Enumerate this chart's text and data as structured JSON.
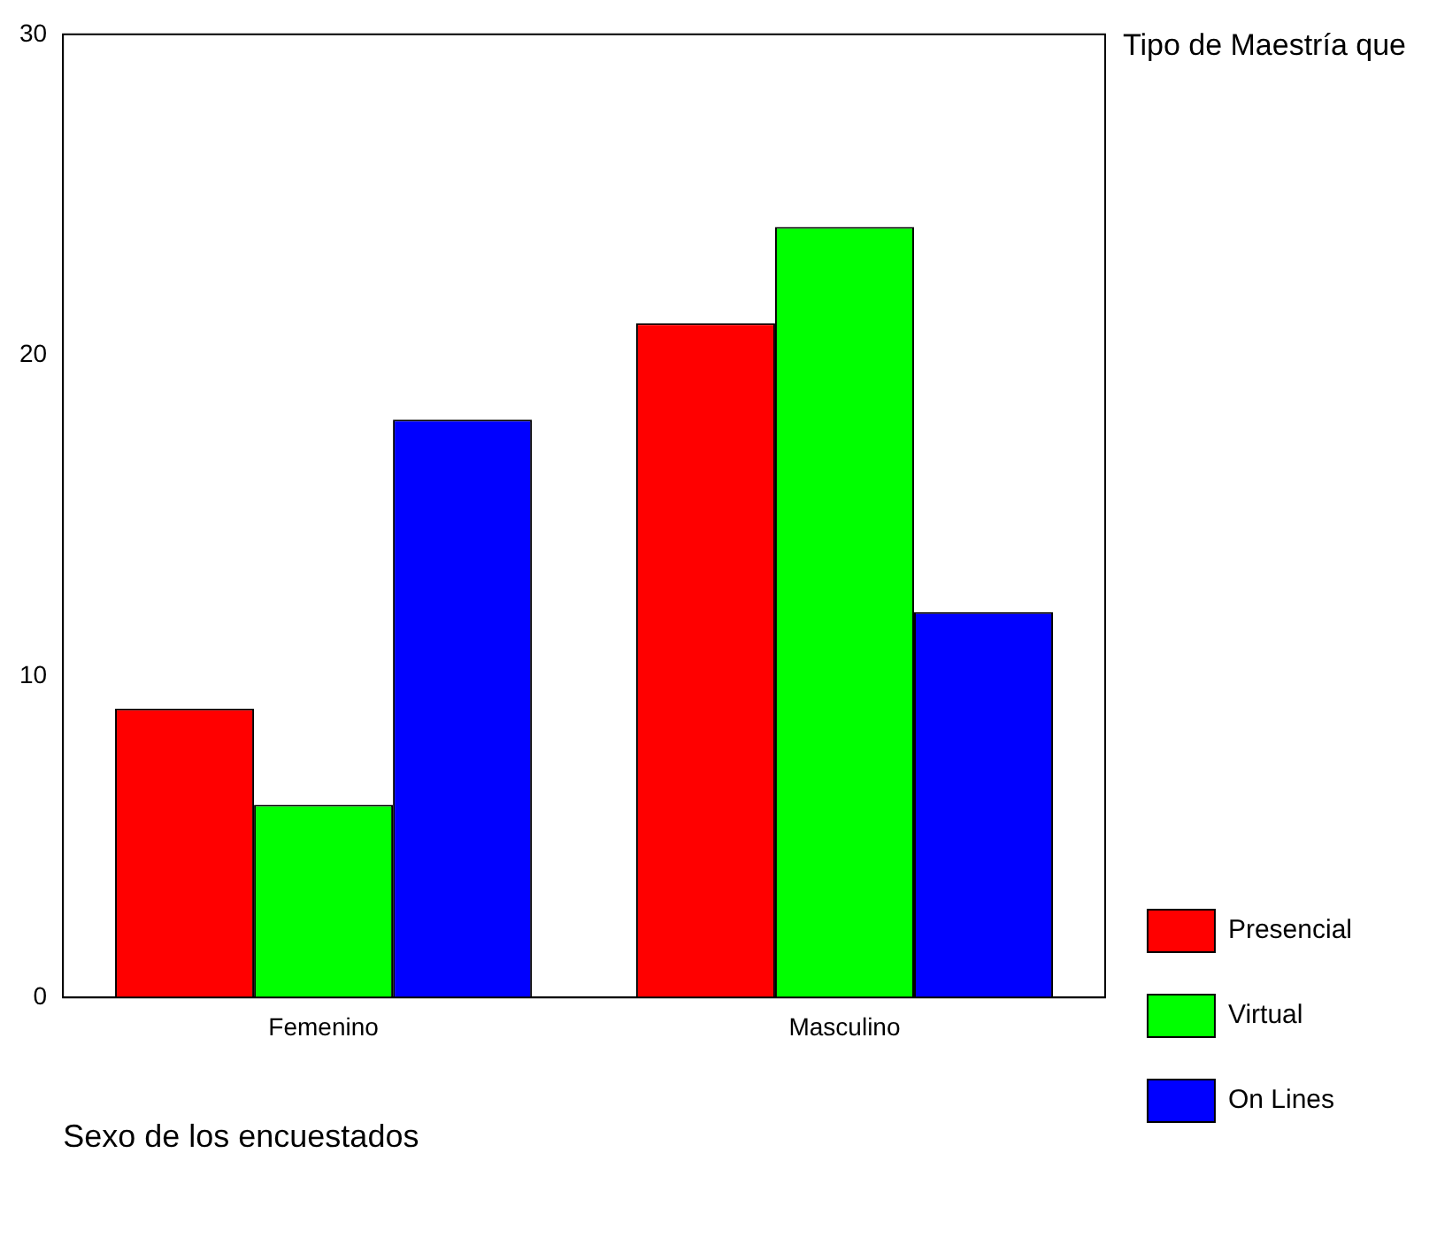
{
  "chart_data": {
    "type": "bar",
    "xlabel": "Sexo de los encuestados",
    "legend_title": "Tipo de Maestría que",
    "categories": [
      "Femenino",
      "Masculino"
    ],
    "series": [
      {
        "name": "Presencial",
        "color": "#ff0000",
        "values": [
          9,
          21
        ]
      },
      {
        "name": "Virtual",
        "color": "#00ff00",
        "values": [
          6,
          24
        ]
      },
      {
        "name": "On Lines",
        "color": "#0000ff",
        "values": [
          18,
          12
        ]
      }
    ],
    "ylim": [
      0,
      30
    ],
    "yticks": [
      0,
      10,
      20,
      30
    ],
    "grid": false,
    "legend": "right"
  }
}
